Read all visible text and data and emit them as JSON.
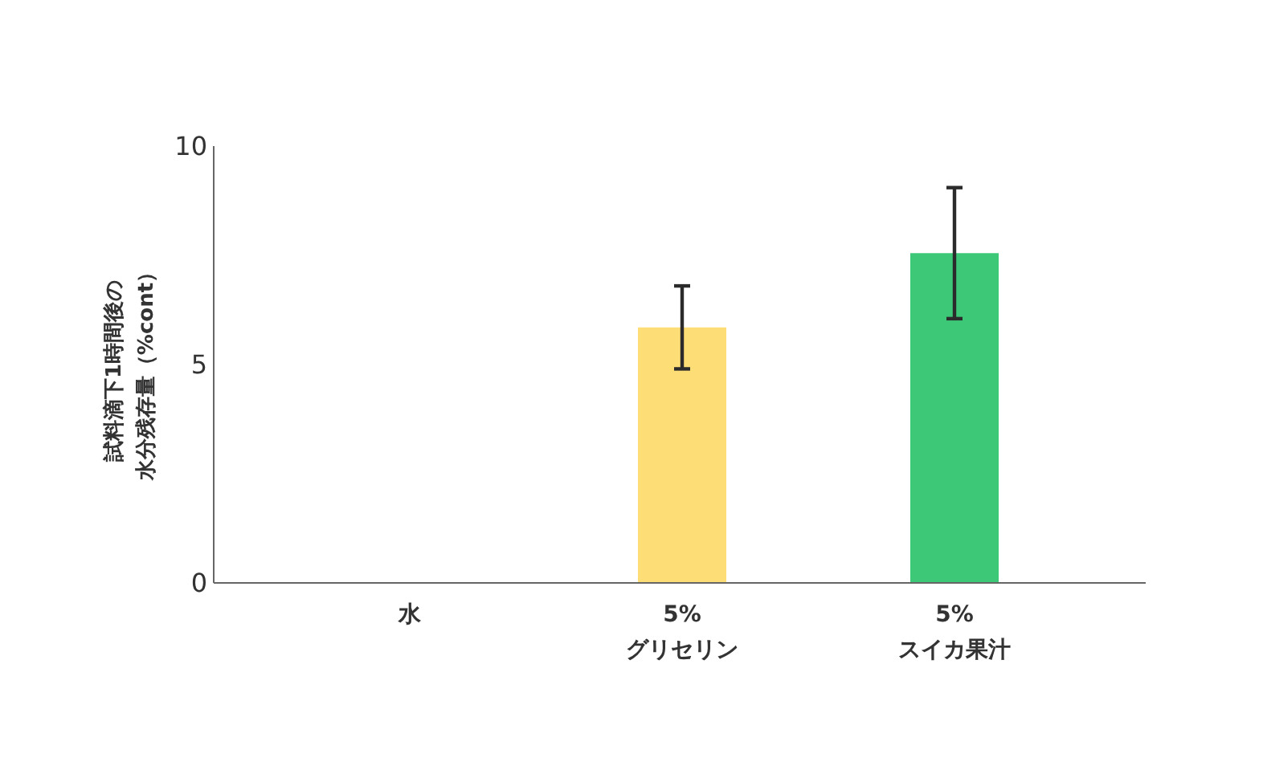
{
  "chart_data": {
    "type": "bar",
    "ylabel": "試料滴下1時間後の水分残存量（%cont）",
    "categories": [
      "水",
      "5%\nグリセリン",
      "5%\nスイカ果汁"
    ],
    "values": [
      0,
      5.85,
      7.55
    ],
    "colors": [
      "#fddd75",
      "#fddd75",
      "#3dc878"
    ],
    "errors": [
      null,
      0.95,
      1.5
    ],
    "ylim": [
      0,
      10
    ],
    "yticks": [
      0,
      5,
      10
    ],
    "grid": false
  }
}
